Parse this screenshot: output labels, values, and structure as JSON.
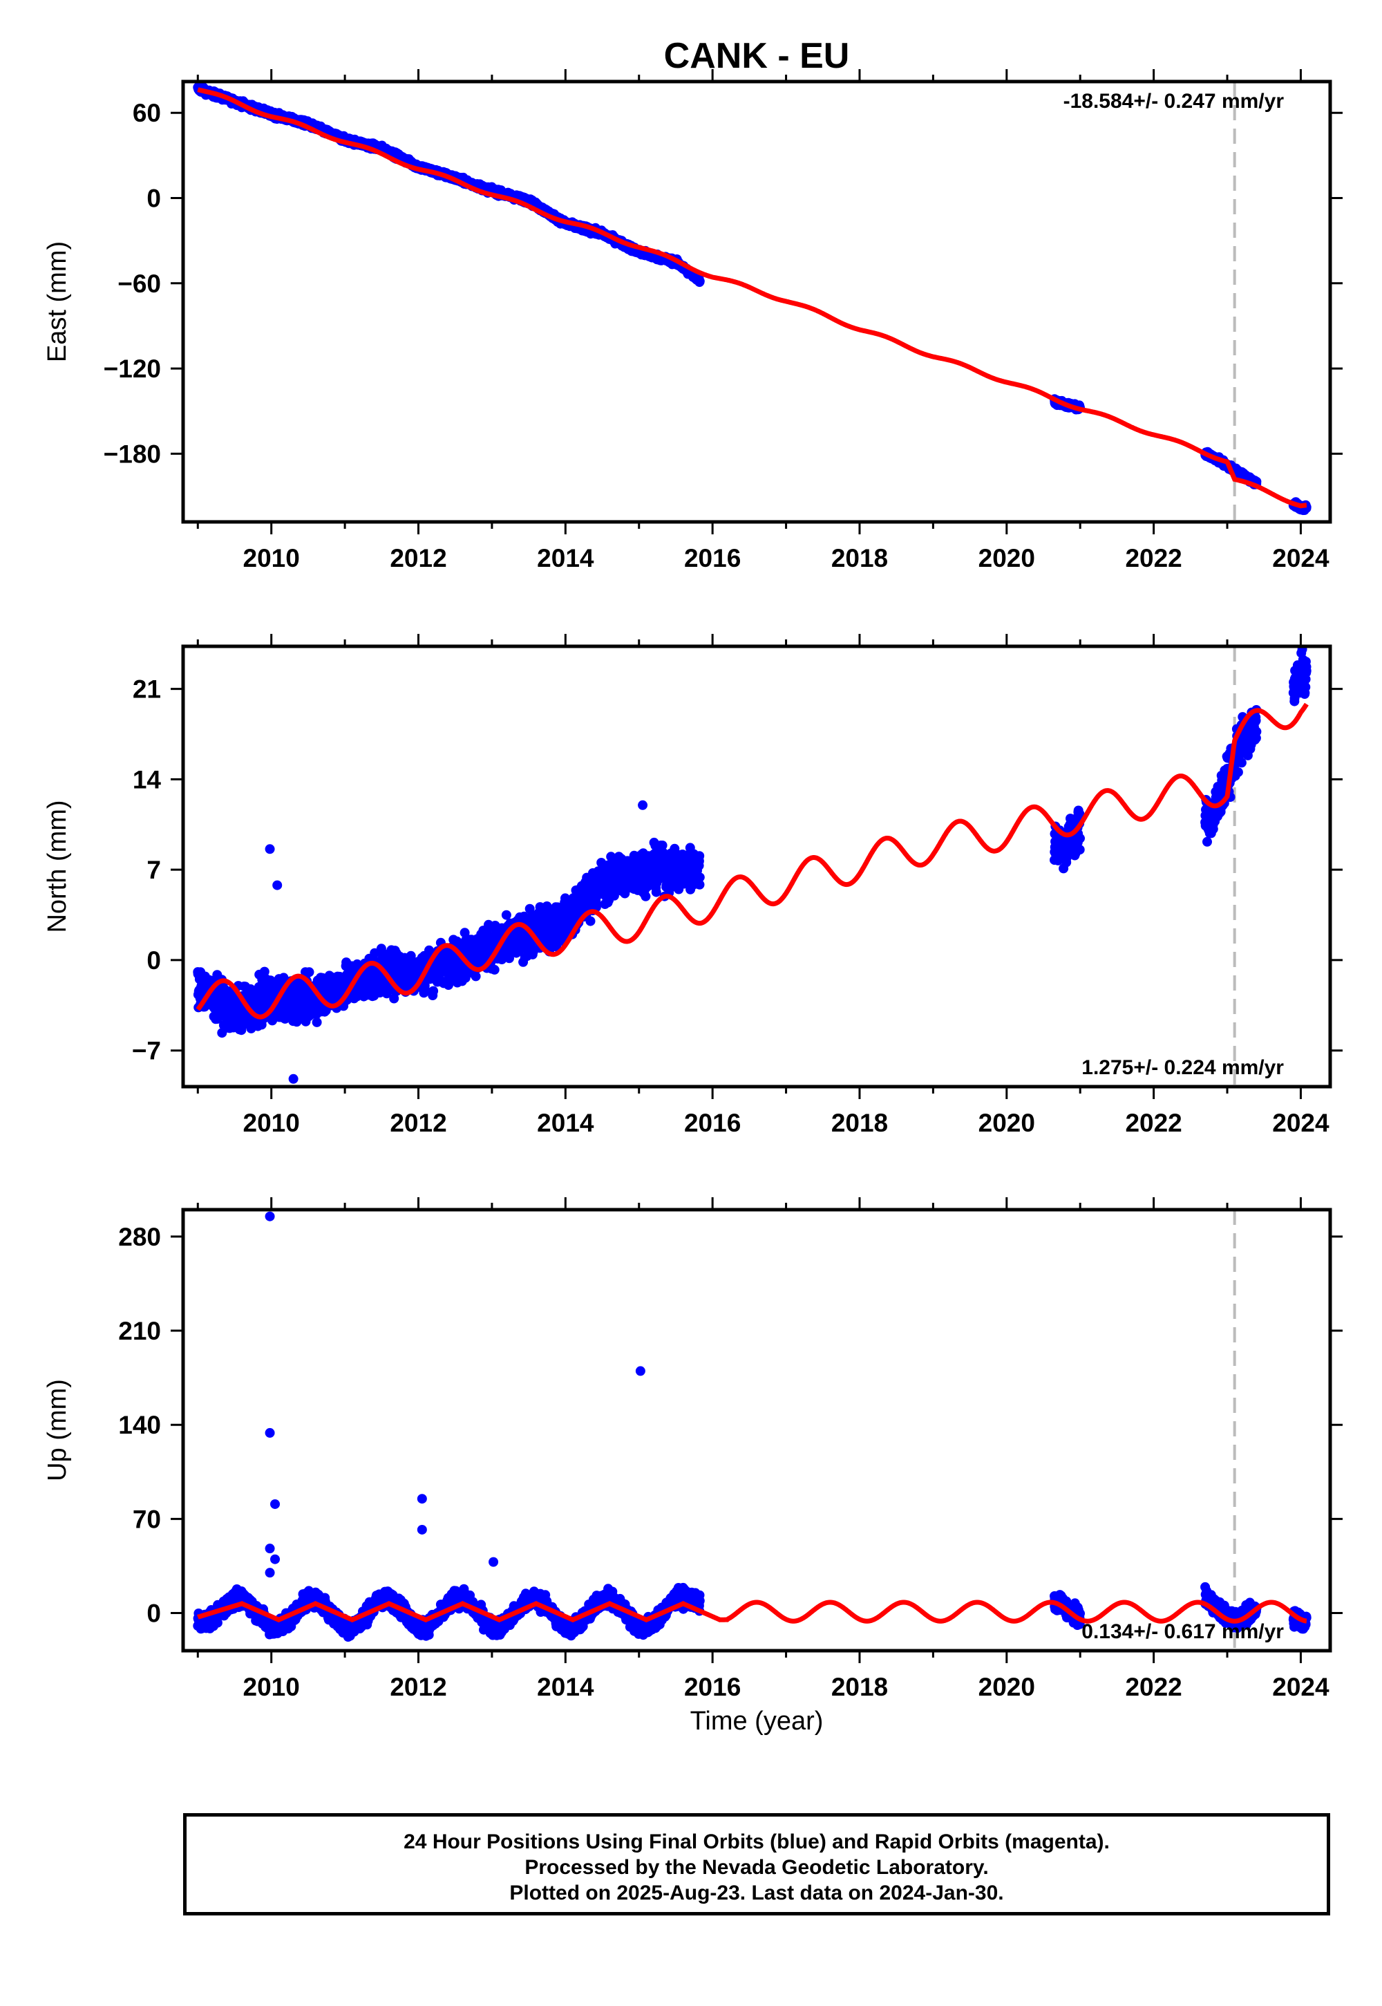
{
  "title": "CANK - EU",
  "footer": {
    "line1": "24 Hour Positions Using Final Orbits (blue) and Rapid Orbits (magenta).",
    "line2": "Processed by the Nevada Geodetic Laboratory.",
    "line3": "Plotted on 2025-Aug-23. Last data on 2024-Jan-30."
  },
  "colors": {
    "data_points": "#0000ff",
    "model_curve": "#ff0000",
    "event_line": "#bbbbbb",
    "frame": "#000000"
  },
  "chart_data": [
    {
      "type": "scatter",
      "component": "East",
      "ylabel": "East (mm)",
      "xlabel": "",
      "xlim": [
        2008.8,
        2024.4
      ],
      "ylim": [
        -228,
        82
      ],
      "xticks": [
        2010,
        2012,
        2014,
        2016,
        2018,
        2020,
        2022,
        2024
      ],
      "yticks": [
        60,
        0,
        -60,
        -120,
        -180
      ],
      "ytick_labels": [
        "60",
        "0",
        "−60",
        "−120",
        "−180"
      ],
      "rate_label": "-18.584+/- 0.247 mm/yr",
      "rate_position": "top-right",
      "event_lines": [
        2023.1
      ],
      "data_segments": [
        [
          2009.0,
          2015.83
        ],
        [
          2020.65,
          2021.0
        ],
        [
          2022.7,
          2023.4
        ],
        [
          2023.9,
          2024.08
        ]
      ],
      "series": [
        {
          "name": "Final Orbits",
          "points": [
            [
              2009.0,
              77
            ],
            [
              2009.5,
              68
            ],
            [
              2010.0,
              59
            ],
            [
              2010.5,
              52
            ],
            [
              2011.0,
              41
            ],
            [
              2011.5,
              35
            ],
            [
              2012.0,
              22
            ],
            [
              2012.5,
              14
            ],
            [
              2013.0,
              5
            ],
            [
              2013.5,
              -2
            ],
            [
              2014.0,
              -18
            ],
            [
              2014.5,
              -25
            ],
            [
              2015.0,
              -38
            ],
            [
              2015.5,
              -45
            ],
            [
              2015.83,
              -58
            ],
            [
              2020.7,
              -144
            ],
            [
              2021.0,
              -148
            ],
            [
              2022.8,
              -182
            ],
            [
              2023.3,
              -198
            ],
            [
              2024.0,
              -218
            ]
          ]
        },
        {
          "name": "Model",
          "points": [
            [
              2009.0,
              77
            ],
            [
              2010.0,
              58
            ],
            [
              2011.0,
              40
            ],
            [
              2012.0,
              21
            ],
            [
              2013.0,
              3
            ],
            [
              2014.0,
              -16
            ],
            [
              2015.0,
              -34
            ],
            [
              2016.0,
              -55
            ],
            [
              2017.0,
              -72
            ],
            [
              2018.0,
              -92
            ],
            [
              2019.0,
              -111
            ],
            [
              2020.0,
              -129
            ],
            [
              2021.0,
              -148
            ],
            [
              2022.0,
              -166
            ],
            [
              2023.0,
              -185
            ],
            [
              2023.1,
              -198
            ],
            [
              2024.0,
              -216
            ]
          ]
        }
      ]
    },
    {
      "type": "scatter",
      "component": "North",
      "ylabel": "North (mm)",
      "xlabel": "",
      "xlim": [
        2008.8,
        2024.4
      ],
      "ylim": [
        -9.8,
        24.3
      ],
      "xticks": [
        2010,
        2012,
        2014,
        2016,
        2018,
        2020,
        2022,
        2024
      ],
      "yticks": [
        21,
        14,
        7,
        0,
        -7
      ],
      "ytick_labels": [
        "21",
        "14",
        "7",
        "0",
        "−7"
      ],
      "rate_label": "1.275+/- 0.224 mm/yr",
      "rate_position": "bottom-right",
      "event_lines": [
        2023.1
      ],
      "data_segments": [
        [
          2009.0,
          2015.83
        ],
        [
          2020.65,
          2021.0
        ],
        [
          2022.7,
          2023.4
        ],
        [
          2023.9,
          2024.08
        ]
      ],
      "series": [
        {
          "name": "Final Orbits",
          "points": [
            [
              2009.0,
              -2
            ],
            [
              2009.5,
              -4
            ],
            [
              2010.0,
              -3
            ],
            [
              2010.5,
              -3
            ],
            [
              2011.0,
              -2
            ],
            [
              2011.5,
              -1
            ],
            [
              2012.0,
              -1
            ],
            [
              2012.5,
              0
            ],
            [
              2013.0,
              1
            ],
            [
              2013.5,
              2
            ],
            [
              2014.0,
              3
            ],
            [
              2014.5,
              6
            ],
            [
              2015.0,
              7
            ],
            [
              2015.5,
              7
            ],
            [
              2020.8,
              9
            ],
            [
              2021.0,
              10
            ],
            [
              2022.8,
              11
            ],
            [
              2023.2,
              17
            ],
            [
              2024.0,
              22
            ]
          ]
        },
        {
          "name": "Model",
          "points": [
            [
              2009.0,
              -3
            ],
            [
              2010.0,
              -3
            ],
            [
              2011.0,
              -2
            ],
            [
              2012.0,
              -1
            ],
            [
              2013.0,
              1
            ],
            [
              2014.0,
              2
            ],
            [
              2015.0,
              3
            ],
            [
              2016.0,
              4.5
            ],
            [
              2017.0,
              6
            ],
            [
              2018.0,
              7.5
            ],
            [
              2019.0,
              9
            ],
            [
              2020.0,
              10
            ],
            [
              2021.0,
              11.3
            ],
            [
              2022.0,
              12.5
            ],
            [
              2023.0,
              13.5
            ],
            [
              2023.1,
              17
            ],
            [
              2024.0,
              20
            ]
          ]
        },
        {
          "name": "Outliers",
          "points": [
            [
              2009.98,
              8.6
            ],
            [
              2010.08,
              5.8
            ],
            [
              2015.05,
              12
            ],
            [
              2010.3,
              -9.2
            ]
          ]
        }
      ]
    },
    {
      "type": "scatter",
      "component": "Up",
      "ylabel": "Up (mm)",
      "xlabel": "Time (year)",
      "xlim": [
        2008.8,
        2024.4
      ],
      "ylim": [
        -28,
        300
      ],
      "xticks": [
        2010,
        2012,
        2014,
        2016,
        2018,
        2020,
        2022,
        2024
      ],
      "yticks": [
        280,
        210,
        140,
        70,
        0
      ],
      "ytick_labels": [
        "280",
        "210",
        "140",
        "70",
        "0"
      ],
      "rate_label": "0.134+/- 0.617 mm/yr",
      "rate_position": "bottom-right",
      "event_lines": [
        2023.1
      ],
      "data_segments": [
        [
          2009.0,
          2015.83
        ],
        [
          2020.65,
          2021.0
        ],
        [
          2022.7,
          2023.4
        ],
        [
          2023.9,
          2024.08
        ]
      ],
      "series": [
        {
          "name": "Final Orbits",
          "points": [
            [
              2009.0,
              0
            ],
            [
              2009.5,
              5
            ],
            [
              2010.0,
              -5
            ],
            [
              2010.5,
              5
            ],
            [
              2011.0,
              -5
            ],
            [
              2011.5,
              5
            ],
            [
              2012.0,
              -5
            ],
            [
              2012.5,
              5
            ],
            [
              2013.0,
              -5
            ],
            [
              2013.5,
              5
            ],
            [
              2014.0,
              -5
            ],
            [
              2014.5,
              5
            ],
            [
              2015.0,
              -5
            ],
            [
              2015.5,
              5
            ],
            [
              2020.8,
              2
            ],
            [
              2022.8,
              5
            ],
            [
              2023.2,
              2
            ],
            [
              2024.0,
              0
            ]
          ]
        },
        {
          "name": "Model",
          "points": [
            [
              2009.0,
              -3
            ],
            [
              2009.6,
              7
            ],
            [
              2010.1,
              -5
            ],
            [
              2010.6,
              7
            ],
            [
              2011.1,
              -5
            ],
            [
              2011.6,
              7
            ],
            [
              2012.1,
              -5
            ],
            [
              2012.6,
              7
            ],
            [
              2013.1,
              -5
            ],
            [
              2013.6,
              7
            ],
            [
              2014.1,
              -5
            ],
            [
              2014.6,
              7
            ],
            [
              2015.1,
              -5
            ],
            [
              2015.6,
              7
            ],
            [
              2016.1,
              -5
            ],
            [
              2024.0,
              2
            ]
          ]
        },
        {
          "name": "Outliers",
          "points": [
            [
              2009.98,
              295
            ],
            [
              2009.98,
              134
            ],
            [
              2010.05,
              81
            ],
            [
              2012.05,
              85
            ],
            [
              2012.05,
              62
            ],
            [
              2015.02,
              180
            ],
            [
              2013.02,
              38
            ],
            [
              2010.05,
              40
            ],
            [
              2009.98,
              48
            ],
            [
              2009.98,
              30
            ]
          ]
        }
      ]
    }
  ]
}
